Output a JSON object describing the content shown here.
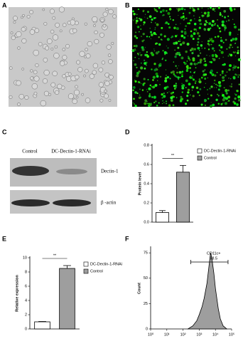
{
  "panels": [
    "A",
    "B",
    "C",
    "D",
    "E",
    "F"
  ],
  "blot": {
    "lanes": [
      "Control",
      "DC-Dectin-1-RNAi"
    ],
    "proteins": [
      "Dectin-1",
      "β -actin"
    ]
  },
  "chart_data": [
    {
      "type": "bar",
      "ylabel": "Protein level",
      "significance": "**",
      "series": [
        {
          "name": "DC-Dectin-1-RNAi",
          "color": "#ffffff",
          "values": [
            0.1
          ],
          "errors": [
            0.02
          ]
        },
        {
          "name": "Control",
          "color": "#9e9e9e",
          "values": [
            0.52
          ],
          "errors": [
            0.07
          ]
        }
      ],
      "ylim": [
        0,
        0.8
      ],
      "yticks": [
        {
          "value": 0,
          "label": "0.0"
        },
        0.2,
        0.4,
        0.6,
        0.8
      ]
    },
    {
      "type": "bar",
      "ylabel": "Relative expression",
      "significance": "**",
      "series": [
        {
          "name": "DC-Dectin-1-RNAi",
          "color": "#ffffff",
          "values": [
            1.0
          ],
          "errors": [
            0.05
          ]
        },
        {
          "name": "Control",
          "color": "#9e9e9e",
          "values": [
            8.5
          ],
          "errors": [
            0.4
          ]
        }
      ],
      "ylim": [
        0,
        10
      ],
      "yticks": [
        0,
        2,
        4,
        6,
        8,
        10
      ]
    },
    {
      "type": "area",
      "ylabel": "Count",
      "color": "#9e9e9e",
      "xlog": true,
      "x": [
        200,
        400,
        700,
        1000,
        1500,
        2000,
        3000,
        4000,
        5000,
        6000,
        8000,
        10000,
        15000,
        20000,
        30000,
        50000
      ],
      "values": [
        0,
        3,
        8,
        14,
        22,
        30,
        45,
        62,
        75,
        70,
        55,
        40,
        20,
        10,
        3,
        0
      ],
      "gate": {
        "label": "CD11c+",
        "percent": 98.5,
        "range": [
          300,
          60000
        ]
      },
      "xlim": [
        1,
        100000
      ],
      "xticks": [
        {
          "value": 1,
          "label": "10⁰"
        },
        {
          "value": 10,
          "label": "10¹"
        },
        {
          "value": 100,
          "label": "10²"
        },
        {
          "value": 1000,
          "label": "10³"
        },
        {
          "value": 10000,
          "label": "10⁴"
        },
        {
          "value": 100000,
          "label": "10⁵"
        }
      ],
      "ylim": [
        0,
        80
      ],
      "yticks": [
        0,
        25,
        50,
        75
      ]
    }
  ]
}
